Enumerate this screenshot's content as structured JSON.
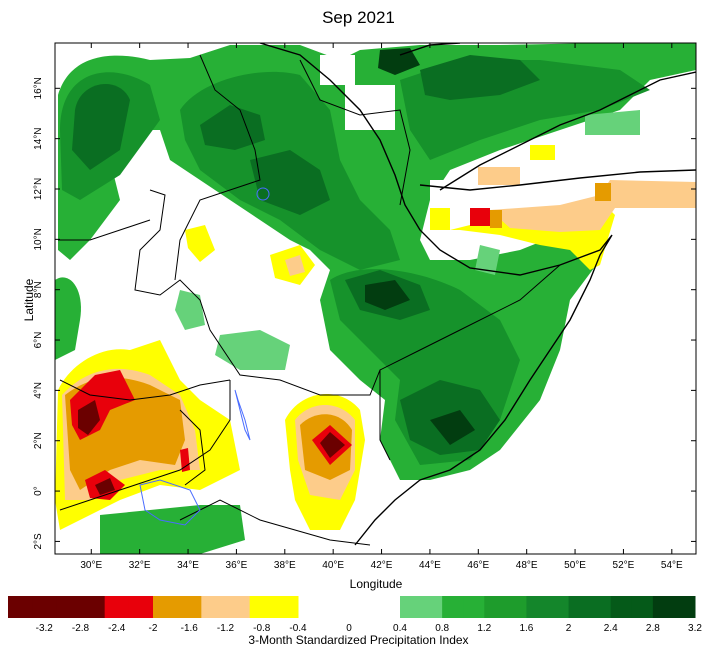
{
  "title": "Sep 2021",
  "map": {
    "xlabel": "Longitude",
    "ylabel": "Latitude",
    "lon_ticks": [
      "30°E",
      "32°E",
      "34°E",
      "36°E",
      "38°E",
      "40°E",
      "42°E",
      "44°E",
      "46°E",
      "48°E",
      "50°E",
      "52°E",
      "54°E"
    ],
    "lat_ticks": [
      "2°S",
      "0°",
      "2°N",
      "4°N",
      "6°N",
      "8°N",
      "10°N",
      "12°N",
      "14°N",
      "16°N"
    ],
    "lon_range": [
      28.5,
      55
    ],
    "lat_range": [
      -2.5,
      17.8
    ],
    "projection": "lat-lon",
    "features": [
      "country borders",
      "coastline",
      "lakes",
      "rivers"
    ]
  },
  "legend": {
    "title": "3-Month Standardized Precipitation Index",
    "tick_labels": [
      "-3.2",
      "-2.8",
      "-2.4",
      "-2",
      "-1.6",
      "-1.2",
      "-0.8",
      "-0.4",
      "0",
      "0.4",
      "0.8",
      "1.2",
      "1.6",
      "2",
      "2.4",
      "2.8",
      "3.2"
    ],
    "dry_colors": [
      "#6b0000",
      "#6b0000",
      "#6b0000",
      "#6b0000",
      "#e8000b",
      "#e8000b",
      "#e59b00",
      "#e59b00",
      "#fdcc8a",
      "#fdcc8a",
      "#ffff00",
      "#ffff00"
    ],
    "wet_colors": [
      "#66d27a",
      "#66d27a",
      "#27b036",
      "#27b036",
      "#1e9c2c",
      "#1e9c2c",
      "#14862b",
      "#14862b",
      "#0a6e22",
      "#0a6e22",
      "#055a19",
      "#055a19",
      "#023d10",
      "#023d10"
    ]
  },
  "colors": {
    "very_dry": "#6b0000",
    "dry_red": "#e8000b",
    "dry_orange": "#e59b00",
    "dry_tan": "#fdcc8a",
    "dry_yellow": "#ffff00",
    "wet_light": "#66d27a",
    "wet_mid": "#27b036",
    "wet_green": "#16922b",
    "wet_dark": "#0a6e22",
    "wet_darkest": "#023d10",
    "border": "#000000",
    "water": "#4a6cff"
  }
}
